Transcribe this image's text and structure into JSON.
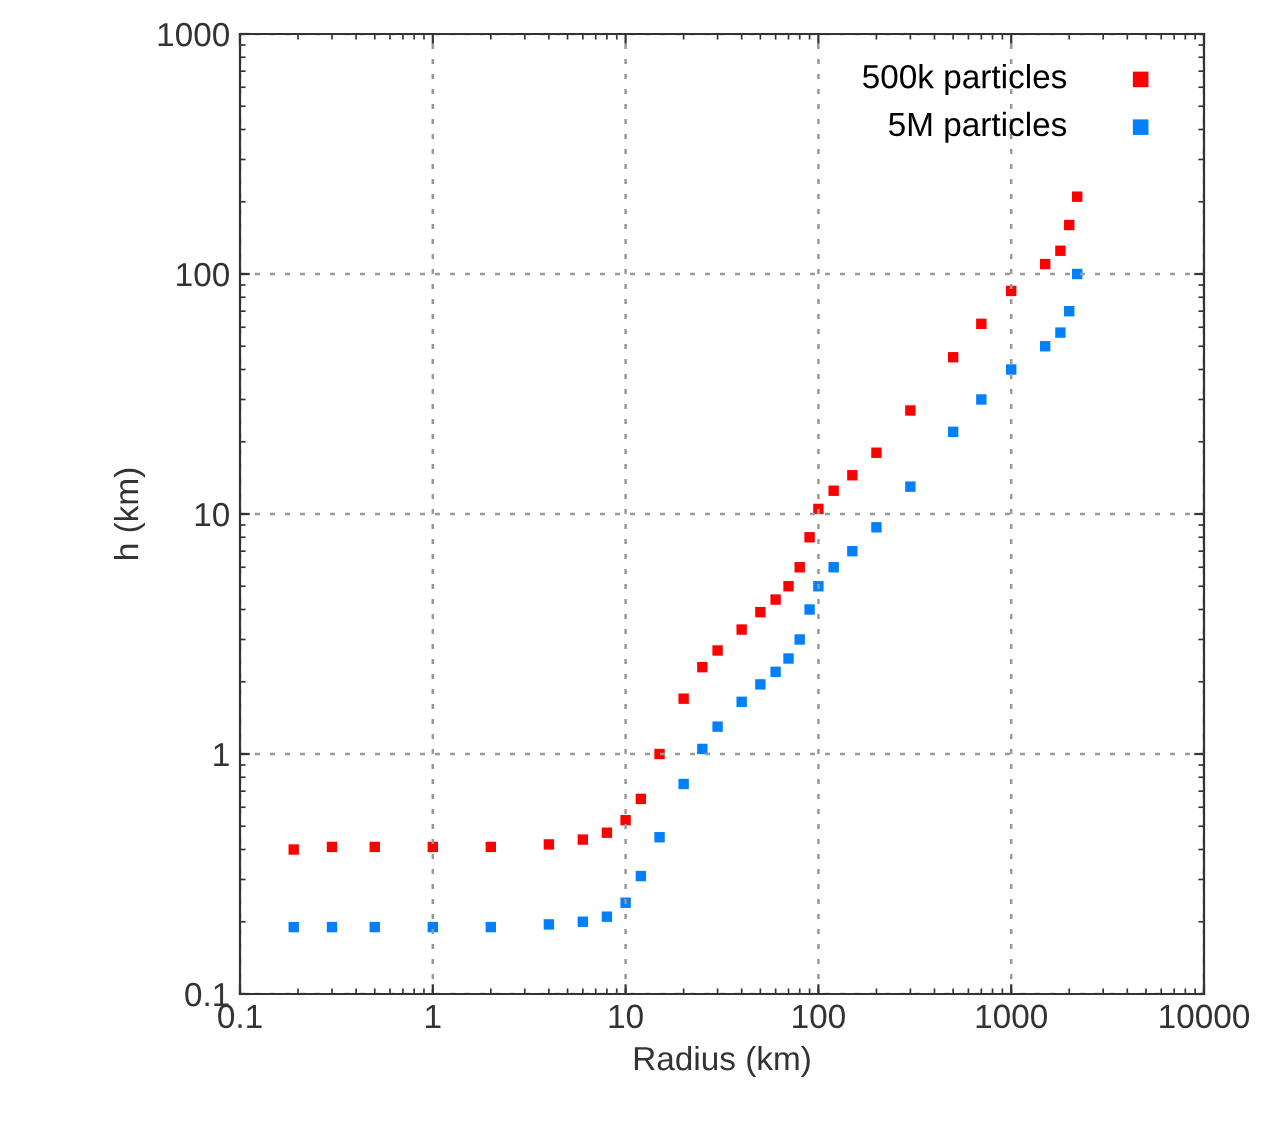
{
  "chart_data": {
    "type": "scatter",
    "xlabel": "Radius (km)",
    "ylabel": "h (km)",
    "log": "xy",
    "xlim": [
      0.1,
      10000
    ],
    "ylim": [
      0.1,
      1000
    ],
    "xticks": [
      0.1,
      1,
      10,
      100,
      1000,
      10000
    ],
    "yticks": [
      0.1,
      1,
      10,
      100,
      1000
    ],
    "grid": true,
    "legend": "top right",
    "marker": "square",
    "series": [
      {
        "name": "500k particles",
        "color": "#ff0000",
        "x": [
          0.19,
          0.3,
          0.5,
          1,
          2,
          4,
          6,
          8,
          10,
          12,
          15,
          20,
          25,
          30,
          40,
          50,
          60,
          70,
          80,
          90,
          100,
          120,
          150,
          200,
          300,
          500,
          700,
          1000,
          1500,
          1800,
          2000,
          2200
        ],
        "values": [
          0.4,
          0.41,
          0.41,
          0.41,
          0.41,
          0.42,
          0.44,
          0.47,
          0.53,
          0.65,
          1.0,
          1.7,
          2.3,
          2.7,
          3.3,
          3.9,
          4.4,
          5.0,
          6.0,
          8,
          10.5,
          12.5,
          14.5,
          18,
          27,
          45,
          62,
          85,
          110,
          125,
          160,
          210
        ]
      },
      {
        "name": "5M particles",
        "color": "#0080ff",
        "x": [
          0.19,
          0.3,
          0.5,
          1,
          2,
          4,
          6,
          8,
          10,
          12,
          15,
          20,
          25,
          30,
          40,
          50,
          60,
          70,
          80,
          90,
          100,
          120,
          150,
          200,
          300,
          500,
          700,
          1000,
          1500,
          1800,
          2000,
          2200
        ],
        "values": [
          0.19,
          0.19,
          0.19,
          0.19,
          0.19,
          0.195,
          0.2,
          0.21,
          0.24,
          0.31,
          0.45,
          0.75,
          1.05,
          1.3,
          1.65,
          1.95,
          2.2,
          2.5,
          3.0,
          4.0,
          5.0,
          6.0,
          7.0,
          8.8,
          13,
          22,
          30,
          40,
          50,
          57,
          70,
          100
        ]
      }
    ]
  }
}
